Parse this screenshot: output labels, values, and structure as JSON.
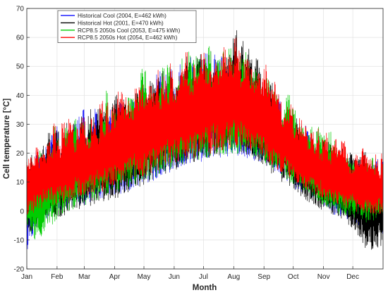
{
  "chart_data": {
    "type": "line",
    "xlabel": "Month",
    "ylabel": "Cell temperature [°C]",
    "ylim": [
      -20,
      70
    ],
    "yticks": [
      -20,
      -10,
      0,
      10,
      20,
      30,
      40,
      50,
      60,
      70
    ],
    "xlim": [
      1,
      366
    ],
    "months": [
      {
        "label": "Jan",
        "day": 1
      },
      {
        "label": "Feb",
        "day": 32
      },
      {
        "label": "Mar",
        "day": 60
      },
      {
        "label": "Apr",
        "day": 91
      },
      {
        "label": "May",
        "day": 121
      },
      {
        "label": "Jun",
        "day": 152
      },
      {
        "label": "Jul",
        "day": 182
      },
      {
        "label": "Aug",
        "day": 213
      },
      {
        "label": "Sep",
        "day": 244
      },
      {
        "label": "Oct",
        "day": 274
      },
      {
        "label": "Nov",
        "day": 305
      },
      {
        "label": "Dec",
        "day": 335
      }
    ],
    "grid": true,
    "legend_position": "top-left",
    "series": [
      {
        "name": "Historical Cool (2004, E=462 kWh)",
        "color": "#2020ff",
        "x": [
          1,
          10,
          20,
          32,
          45,
          60,
          75,
          91,
          105,
          121,
          135,
          152,
          165,
          182,
          197,
          213,
          228,
          244,
          259,
          274,
          290,
          305,
          320,
          335,
          350,
          365
        ],
        "min": [
          -14,
          -6,
          -3,
          0,
          1,
          2,
          4,
          5,
          7,
          9,
          11,
          14,
          16,
          17,
          18,
          19,
          18,
          16,
          13,
          8,
          5,
          1,
          -2,
          -4,
          -6,
          -8
        ],
        "max": [
          20,
          24,
          26,
          30,
          33,
          36,
          38,
          41,
          44,
          47,
          49,
          52,
          54,
          56,
          58,
          56,
          51,
          44,
          40,
          35,
          30,
          27,
          24,
          22,
          20,
          19
        ]
      },
      {
        "name": "Historical Hot (2001, E=470 kWh)",
        "color": "#000000",
        "x": [
          1,
          10,
          20,
          32,
          45,
          60,
          75,
          91,
          105,
          121,
          135,
          152,
          165,
          182,
          197,
          213,
          228,
          244,
          259,
          274,
          290,
          305,
          320,
          335,
          350,
          365
        ],
        "min": [
          -9,
          -6,
          -4,
          -3,
          -1,
          1,
          3,
          4,
          6,
          9,
          12,
          14,
          16,
          18,
          19,
          21,
          19,
          15,
          11,
          7,
          3,
          0,
          -2,
          -6,
          -14,
          -12
        ],
        "max": [
          21,
          25,
          27,
          31,
          33,
          35,
          38,
          41,
          45,
          48,
          50,
          53,
          56,
          59,
          62,
          65,
          60,
          53,
          44,
          36,
          31,
          27,
          24,
          22,
          23,
          20
        ]
      },
      {
        "name": "RCP8.5 2050s Cool (2053, E=475 kWh)",
        "color": "#00cc00",
        "x": [
          1,
          10,
          20,
          32,
          45,
          60,
          75,
          91,
          105,
          121,
          135,
          152,
          165,
          182,
          197,
          213,
          228,
          244,
          259,
          274,
          290,
          305,
          320,
          335,
          350,
          365
        ],
        "min": [
          -8,
          -11,
          -7,
          -3,
          0,
          2,
          4,
          6,
          8,
          10,
          12,
          15,
          17,
          18,
          19,
          20,
          19,
          17,
          13,
          9,
          6,
          2,
          -1,
          -2,
          -4,
          -2
        ],
        "max": [
          19,
          24,
          27,
          31,
          34,
          37,
          39,
          45,
          50,
          51,
          52,
          54,
          56,
          57,
          58,
          57,
          55,
          50,
          45,
          40,
          34,
          29,
          26,
          23,
          21,
          20
        ]
      },
      {
        "name": "RCP8.5 2050s Hot (2054, E=462 kWh)",
        "color": "#ff0000",
        "x": [
          1,
          10,
          20,
          32,
          45,
          60,
          75,
          91,
          105,
          121,
          135,
          152,
          165,
          182,
          197,
          213,
          228,
          244,
          259,
          274,
          290,
          305,
          320,
          335,
          350,
          365
        ],
        "min": [
          -3,
          0,
          1,
          2,
          3,
          5,
          6,
          8,
          10,
          12,
          14,
          16,
          18,
          19,
          20,
          22,
          21,
          18,
          14,
          10,
          7,
          4,
          2,
          0,
          -1,
          -1
        ],
        "max": [
          22,
          26,
          29,
          32,
          34,
          36,
          38,
          42,
          46,
          48,
          51,
          54,
          57,
          60,
          62,
          63,
          58,
          52,
          45,
          38,
          32,
          28,
          26,
          24,
          22,
          21
        ]
      }
    ]
  }
}
